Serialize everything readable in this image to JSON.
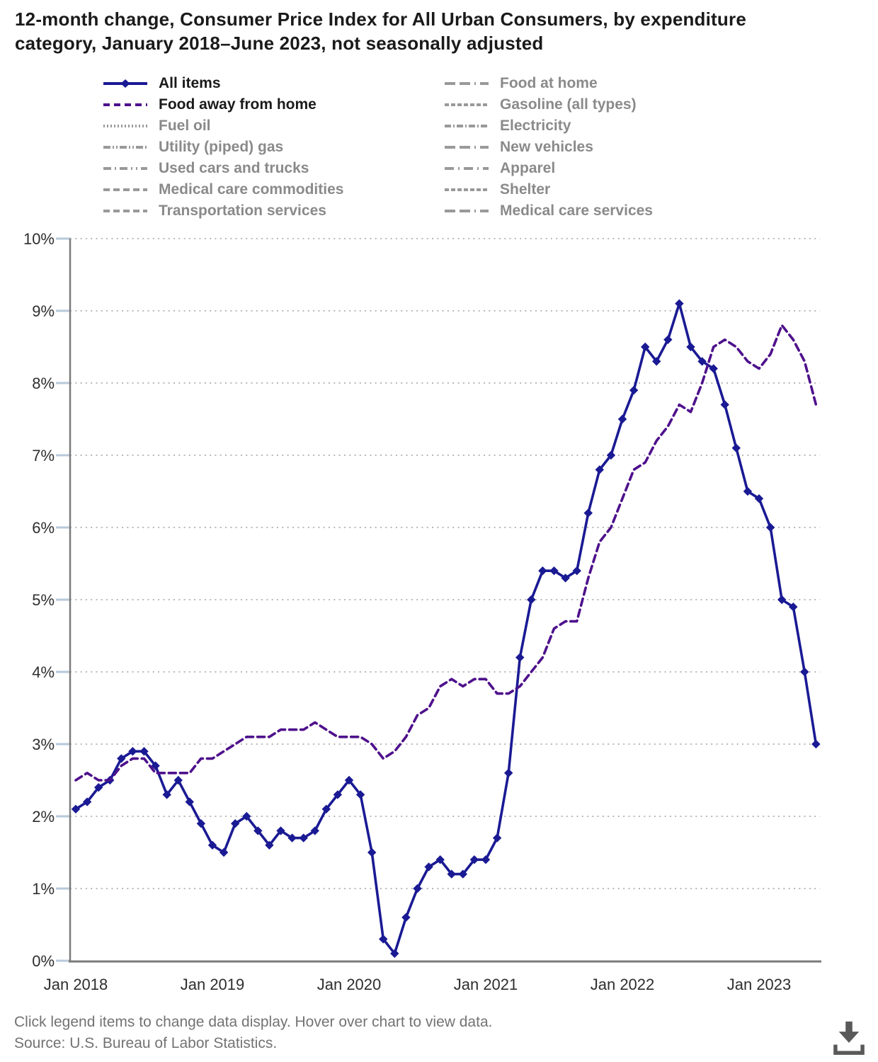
{
  "title": "12-month change, Consumer Price Index for All Urban Consumers, by expenditure category, January 2018–June 2023, not seasonally adjusted",
  "footer": {
    "hint": "Click legend items to change data display. Hover over chart to view data.",
    "source": "Source: U.S. Bureau of Labor Statistics."
  },
  "colors": {
    "all_items": "#1a1a94",
    "food_away_from_home": "#4e118c",
    "inactive_line": "#999999",
    "active_text": "#1a1a1a",
    "inactive_text": "#8a8a8a",
    "grid": "#b8b8b8",
    "axis": "#7a7a7a",
    "tick": "#b7c9da",
    "axis_text": "#2e2e2e",
    "footer_text": "#737373",
    "icon": "#595959"
  },
  "legend": {
    "columns": [
      {
        "items": [
          {
            "label": "All items",
            "active": true,
            "color": "#1a1a94",
            "dash": "",
            "marker": "diamond"
          },
          {
            "label": "Food away from home",
            "active": true,
            "color": "#4e118c",
            "dash": "9 6",
            "marker": "none"
          },
          {
            "label": "Fuel oil",
            "active": false,
            "color": "#999999",
            "dash": "2 3",
            "marker": "none"
          },
          {
            "label": "Utility (piped) gas",
            "active": false,
            "color": "#999999",
            "dash": "10 3 2 3 2 3",
            "marker": "none"
          },
          {
            "label": "Used cars and trucks",
            "active": false,
            "color": "#999999",
            "dash": "11 5 2 5 11 5 2 5 2 5",
            "marker": "none"
          },
          {
            "label": "Medical care commodities",
            "active": false,
            "color": "#999999",
            "dash": "9 5",
            "marker": "none"
          },
          {
            "label": "Transportation services",
            "active": false,
            "color": "#999999",
            "dash": "9 5",
            "marker": "none"
          }
        ]
      },
      {
        "items": [
          {
            "label": "Food at home",
            "active": false,
            "color": "#999999",
            "dash": "15 6 15 6 2 6",
            "marker": "none"
          },
          {
            "label": "Gasoline (all types)",
            "active": false,
            "color": "#999999",
            "dash": "6 3",
            "marker": "none"
          },
          {
            "label": "Electricity",
            "active": false,
            "color": "#999999",
            "dash": "9 3 2 3",
            "marker": "none"
          },
          {
            "label": "New vehicles",
            "active": false,
            "color": "#999999",
            "dash": "15 6 15 6 2 6",
            "marker": "none"
          },
          {
            "label": "Apparel",
            "active": false,
            "color": "#999999",
            "dash": "13 6 2 6",
            "marker": "none"
          },
          {
            "label": "Shelter",
            "active": false,
            "color": "#999999",
            "dash": "6 3",
            "marker": "none"
          },
          {
            "label": "Medical care services",
            "active": false,
            "color": "#999999",
            "dash": "15 6 15 6 2 6",
            "marker": "none"
          }
        ]
      }
    ]
  },
  "chart_data": {
    "type": "line",
    "title": "12-month change, Consumer Price Index for All Urban Consumers, by expenditure category, January 2018–June 2023, not seasonally adjusted",
    "frequency": "monthly",
    "x_start": "2018-01",
    "x_end": "2023-06",
    "x": [
      "2018-01",
      "2018-02",
      "2018-03",
      "2018-04",
      "2018-05",
      "2018-06",
      "2018-07",
      "2018-08",
      "2018-09",
      "2018-10",
      "2018-11",
      "2018-12",
      "2019-01",
      "2019-02",
      "2019-03",
      "2019-04",
      "2019-05",
      "2019-06",
      "2019-07",
      "2019-08",
      "2019-09",
      "2019-10",
      "2019-11",
      "2019-12",
      "2020-01",
      "2020-02",
      "2020-03",
      "2020-04",
      "2020-05",
      "2020-06",
      "2020-07",
      "2020-08",
      "2020-09",
      "2020-10",
      "2020-11",
      "2020-12",
      "2021-01",
      "2021-02",
      "2021-03",
      "2021-04",
      "2021-05",
      "2021-06",
      "2021-07",
      "2021-08",
      "2021-09",
      "2021-10",
      "2021-11",
      "2021-12",
      "2022-01",
      "2022-02",
      "2022-03",
      "2022-04",
      "2022-05",
      "2022-06",
      "2022-07",
      "2022-08",
      "2022-09",
      "2022-10",
      "2022-11",
      "2022-12",
      "2023-01",
      "2023-02",
      "2023-03",
      "2023-04",
      "2023-05",
      "2023-06"
    ],
    "x_tick_labels": [
      "Jan 2018",
      "Jan 2019",
      "Jan 2020",
      "Jan 2021",
      "Jan 2022",
      "Jan 2023"
    ],
    "y_tick_labels": [
      "0%",
      "1%",
      "2%",
      "3%",
      "4%",
      "5%",
      "6%",
      "7%",
      "8%",
      "9%",
      "10%"
    ],
    "ylim": [
      0,
      10
    ],
    "grid": "horizontal dotted",
    "legend_position": "top",
    "series": [
      {
        "name": "All items",
        "color": "#1a1a94",
        "line": "solid",
        "marker": "diamond",
        "values": [
          2.1,
          2.2,
          2.4,
          2.5,
          2.8,
          2.9,
          2.9,
          2.7,
          2.3,
          2.5,
          2.2,
          1.9,
          1.6,
          1.5,
          1.9,
          2.0,
          1.8,
          1.6,
          1.8,
          1.7,
          1.7,
          1.8,
          2.1,
          2.3,
          2.5,
          2.3,
          1.5,
          0.3,
          0.1,
          0.6,
          1.0,
          1.3,
          1.4,
          1.2,
          1.2,
          1.4,
          1.4,
          1.7,
          2.6,
          4.2,
          5.0,
          5.4,
          5.4,
          5.3,
          5.4,
          6.2,
          6.8,
          7.0,
          7.5,
          7.9,
          8.5,
          8.3,
          8.6,
          9.1,
          8.5,
          8.3,
          8.2,
          7.7,
          7.1,
          6.5,
          6.4,
          6.0,
          5.0,
          4.9,
          4.0,
          3.0
        ]
      },
      {
        "name": "Food away from home",
        "color": "#4e118c",
        "line": "dashed",
        "marker": "none",
        "values": [
          2.5,
          2.6,
          2.5,
          2.5,
          2.7,
          2.8,
          2.8,
          2.6,
          2.6,
          2.6,
          2.6,
          2.8,
          2.8,
          2.9,
          3.0,
          3.1,
          3.1,
          3.1,
          3.2,
          3.2,
          3.2,
          3.3,
          3.2,
          3.1,
          3.1,
          3.1,
          3.0,
          2.8,
          2.9,
          3.1,
          3.4,
          3.5,
          3.8,
          3.9,
          3.8,
          3.9,
          3.9,
          3.7,
          3.7,
          3.8,
          4.0,
          4.2,
          4.6,
          4.7,
          4.7,
          5.3,
          5.8,
          6.0,
          6.4,
          6.8,
          6.9,
          7.2,
          7.4,
          7.7,
          7.6,
          8.0,
          8.5,
          8.6,
          8.5,
          8.3,
          8.2,
          8.4,
          8.8,
          8.6,
          8.3,
          7.7
        ]
      }
    ],
    "hidden_series_in_legend": [
      "Fuel oil",
      "Utility (piped) gas",
      "Used cars and trucks",
      "Medical care commodities",
      "Transportation services",
      "Food at home",
      "Gasoline (all types)",
      "Electricity",
      "New vehicles",
      "Apparel",
      "Shelter",
      "Medical care services"
    ]
  }
}
